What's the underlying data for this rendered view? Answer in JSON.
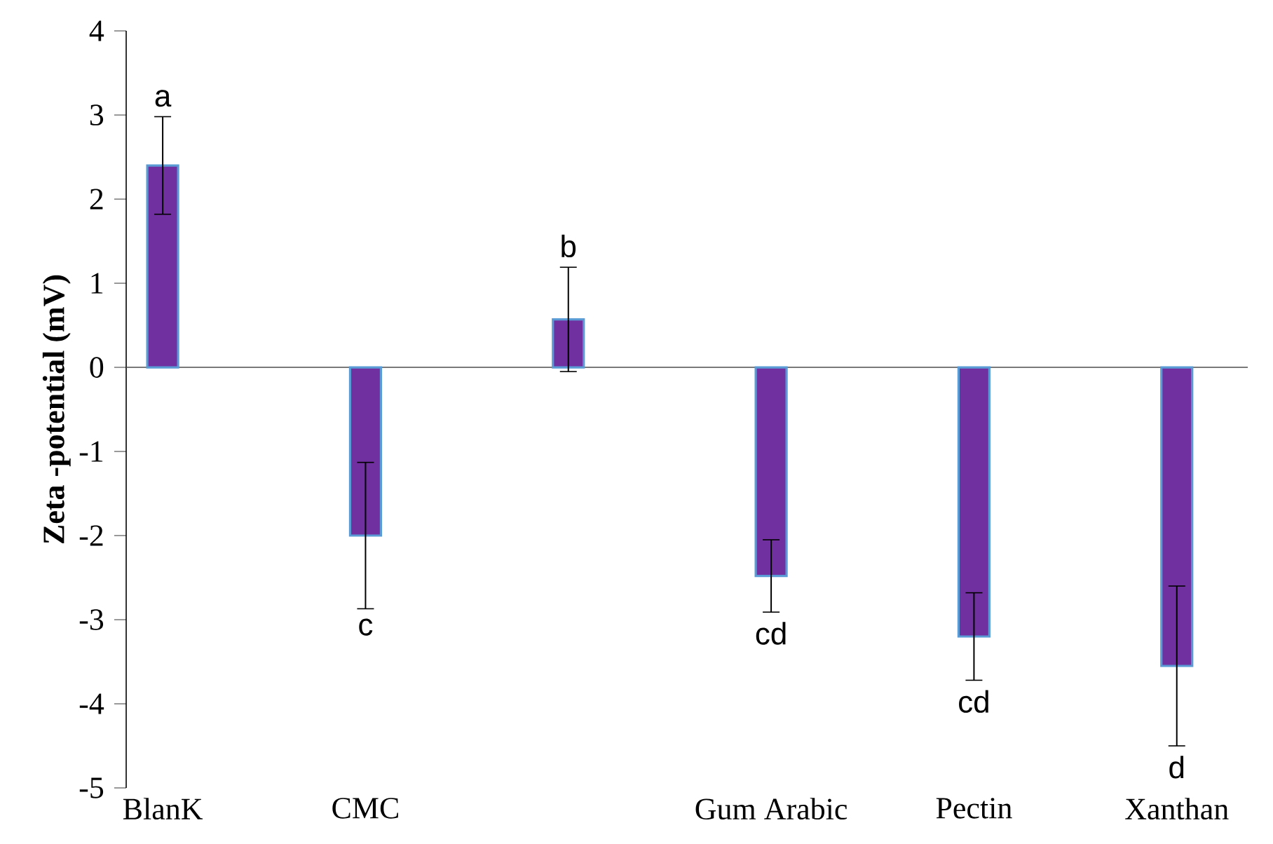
{
  "chart_data": {
    "type": "bar",
    "ylabel": "Zeta -potential (mV)",
    "categories": [
      "BlanK",
      "CMC",
      null,
      "Gum Arabic",
      "Pectin",
      "Xanthan"
    ],
    "values": [
      2.4,
      -2.0,
      0.57,
      -2.48,
      -3.2,
      -3.55
    ],
    "errors": [
      0.58,
      0.87,
      0.62,
      0.43,
      0.52,
      0.95
    ],
    "color": "#7030a0",
    "ylim": [
      -5,
      4
    ],
    "yticks": [
      -5,
      -4,
      -3,
      -2,
      -1,
      0,
      1,
      2,
      3,
      4
    ],
    "annotations": [
      "a",
      "c",
      "b",
      "cd",
      "cd",
      "d"
    ]
  }
}
